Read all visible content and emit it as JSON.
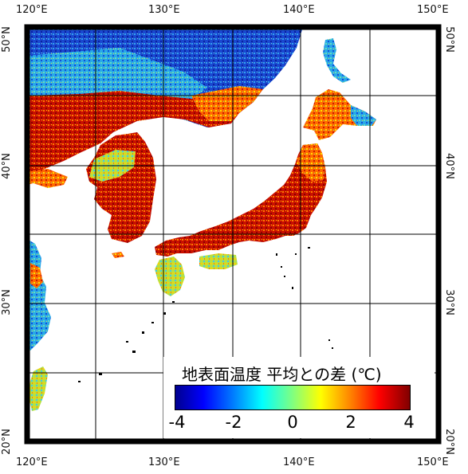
{
  "map": {
    "top_lon_labels": [
      "120°E",
      "130°E",
      "140°E",
      "150°E"
    ],
    "bottom_lon_labels": [
      "120°E",
      "130°E",
      "140°E",
      "150°E"
    ],
    "left_lat_labels": [
      "50°N",
      "40°N",
      "30°N",
      "20°N"
    ],
    "right_lat_labels": [
      "50°N",
      "40°N",
      "30°N",
      "20°N"
    ],
    "land_colors": {
      "hot": "#c40000",
      "warm": "#ff7a00",
      "neutral": "#ffe000",
      "cool": "#4ec8e8",
      "cold": "#1e4fd8",
      "sea": "#ffffff",
      "grid": "#000000"
    }
  },
  "legend": {
    "title": "地表面温度 平均との差 (℃)",
    "ticks": [
      "-4",
      "-2",
      "0",
      "2",
      "4"
    ],
    "range": [
      -4,
      4
    ]
  }
}
